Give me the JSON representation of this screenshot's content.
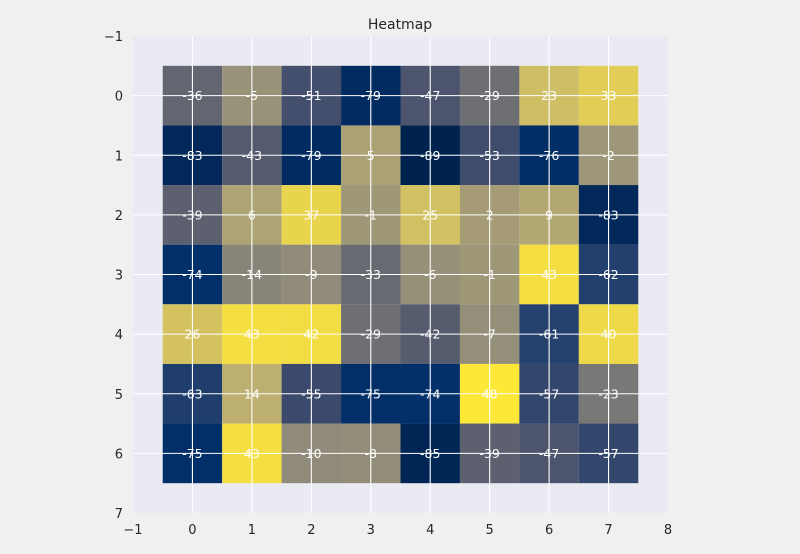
{
  "chart_data": {
    "type": "heatmap",
    "title": "Heatmap",
    "xlabel": "",
    "ylabel": "",
    "xlim": [
      -1,
      8
    ],
    "ylim": [
      7,
      -1
    ],
    "xticks": [
      -1,
      0,
      1,
      2,
      3,
      4,
      5,
      6,
      7,
      8
    ],
    "yticks": [
      -1,
      0,
      1,
      2,
      3,
      4,
      5,
      6,
      7
    ],
    "grid": true,
    "colormap": "cividis",
    "vmin": -89,
    "vmax": 48,
    "values": [
      [
        -36,
        -5,
        -51,
        -79,
        -47,
        -29,
        23,
        33
      ],
      [
        -83,
        -43,
        -79,
        5,
        -89,
        -53,
        -76,
        -2
      ],
      [
        -39,
        6,
        37,
        -1,
        25,
        2,
        9,
        -83
      ],
      [
        -74,
        -14,
        -9,
        -33,
        -6,
        -1,
        43,
        -62
      ],
      [
        26,
        43,
        42,
        -29,
        -42,
        -7,
        -61,
        40
      ],
      [
        -63,
        14,
        -55,
        -75,
        -74,
        48,
        -57,
        -23
      ],
      [
        -75,
        43,
        -10,
        -8,
        -85,
        -39,
        -47,
        -57
      ]
    ],
    "colors": {
      "figure_background": "#f0f0f0",
      "axes_background": "#eaeaf2",
      "grid": "#ffffff",
      "annotation_text": "#ffffff",
      "label_text": "#262626"
    }
  }
}
